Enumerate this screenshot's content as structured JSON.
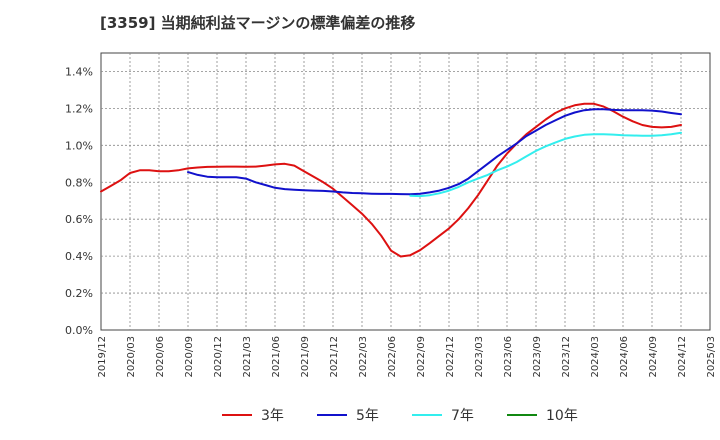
{
  "title": "[3359]  当期純利益マージンの標準偏差の推移",
  "chart_data": {
    "type": "line",
    "title": "[3359]  当期純利益マージンの標準偏差の推移",
    "xlabel": "",
    "ylabel": "",
    "x_ticks": [
      "2019/12",
      "2020/03",
      "2020/06",
      "2020/09",
      "2020/12",
      "2021/03",
      "2021/06",
      "2021/09",
      "2021/12",
      "2022/03",
      "2022/06",
      "2022/09",
      "2022/12",
      "2023/03",
      "2023/06",
      "2023/09",
      "2023/12",
      "2024/03",
      "2024/06",
      "2024/09",
      "2024/12",
      "2025/03"
    ],
    "y_ticks": [
      "0.0%",
      "0.2%",
      "0.4%",
      "0.6%",
      "0.8%",
      "1.0%",
      "1.2%",
      "1.4%"
    ],
    "ylim": [
      0,
      1.5
    ],
    "grid": true,
    "legend_position": "bottom",
    "series": [
      {
        "name": "3年",
        "color": "#dd1111",
        "points": [
          [
            "2019/12",
            0.75
          ],
          [
            "2020/01",
            0.78
          ],
          [
            "2020/02",
            0.81
          ],
          [
            "2020/03",
            0.85
          ],
          [
            "2020/04",
            0.865
          ],
          [
            "2020/05",
            0.865
          ],
          [
            "2020/06",
            0.86
          ],
          [
            "2020/07",
            0.86
          ],
          [
            "2020/08",
            0.865
          ],
          [
            "2020/09",
            0.875
          ],
          [
            "2020/10",
            0.88
          ],
          [
            "2020/11",
            0.883
          ],
          [
            "2020/12",
            0.884
          ],
          [
            "2021/01",
            0.885
          ],
          [
            "2021/02",
            0.885
          ],
          [
            "2021/03",
            0.884
          ],
          [
            "2021/04",
            0.885
          ],
          [
            "2021/05",
            0.89
          ],
          [
            "2021/06",
            0.897
          ],
          [
            "2021/07",
            0.9
          ],
          [
            "2021/08",
            0.89
          ],
          [
            "2021/09",
            0.86
          ],
          [
            "2021/10",
            0.83
          ],
          [
            "2021/11",
            0.8
          ],
          [
            "2021/12",
            0.765
          ],
          [
            "2022/01",
            0.72
          ],
          [
            "2022/02",
            0.675
          ],
          [
            "2022/03",
            0.63
          ],
          [
            "2022/04",
            0.575
          ],
          [
            "2022/05",
            0.51
          ],
          [
            "2022/06",
            0.43
          ],
          [
            "2022/07",
            0.398
          ],
          [
            "2022/08",
            0.405
          ],
          [
            "2022/09",
            0.432
          ],
          [
            "2022/10",
            0.47
          ],
          [
            "2022/11",
            0.51
          ],
          [
            "2022/12",
            0.55
          ],
          [
            "2023/01",
            0.6
          ],
          [
            "2023/02",
            0.66
          ],
          [
            "2023/03",
            0.73
          ],
          [
            "2023/04",
            0.81
          ],
          [
            "2023/05",
            0.89
          ],
          [
            "2023/06",
            0.955
          ],
          [
            "2023/07",
            1.01
          ],
          [
            "2023/08",
            1.06
          ],
          [
            "2023/09",
            1.1
          ],
          [
            "2023/10",
            1.14
          ],
          [
            "2023/11",
            1.175
          ],
          [
            "2023/12",
            1.2
          ],
          [
            "2024/01",
            1.217
          ],
          [
            "2024/02",
            1.225
          ],
          [
            "2024/03",
            1.225
          ],
          [
            "2024/04",
            1.21
          ],
          [
            "2024/05",
            1.185
          ],
          [
            "2024/06",
            1.155
          ],
          [
            "2024/07",
            1.13
          ],
          [
            "2024/08",
            1.11
          ],
          [
            "2024/09",
            1.1
          ],
          [
            "2024/10",
            1.097
          ],
          [
            "2024/11",
            1.1
          ],
          [
            "2024/12",
            1.11
          ]
        ]
      },
      {
        "name": "5年",
        "color": "#1111cc",
        "points": [
          [
            "2020/09",
            0.855
          ],
          [
            "2020/10",
            0.84
          ],
          [
            "2020/11",
            0.83
          ],
          [
            "2020/12",
            0.827
          ],
          [
            "2021/01",
            0.827
          ],
          [
            "2021/02",
            0.827
          ],
          [
            "2021/03",
            0.82
          ],
          [
            "2021/04",
            0.8
          ],
          [
            "2021/05",
            0.785
          ],
          [
            "2021/06",
            0.77
          ],
          [
            "2021/07",
            0.763
          ],
          [
            "2021/08",
            0.76
          ],
          [
            "2021/09",
            0.757
          ],
          [
            "2021/10",
            0.755
          ],
          [
            "2021/11",
            0.753
          ],
          [
            "2021/12",
            0.75
          ],
          [
            "2022/01",
            0.745
          ],
          [
            "2022/02",
            0.742
          ],
          [
            "2022/03",
            0.74
          ],
          [
            "2022/04",
            0.738
          ],
          [
            "2022/05",
            0.737
          ],
          [
            "2022/06",
            0.737
          ],
          [
            "2022/07",
            0.736
          ],
          [
            "2022/08",
            0.735
          ],
          [
            "2022/09",
            0.738
          ],
          [
            "2022/10",
            0.745
          ],
          [
            "2022/11",
            0.755
          ],
          [
            "2022/12",
            0.77
          ],
          [
            "2023/01",
            0.79
          ],
          [
            "2023/02",
            0.82
          ],
          [
            "2023/03",
            0.86
          ],
          [
            "2023/04",
            0.9
          ],
          [
            "2023/05",
            0.94
          ],
          [
            "2023/06",
            0.975
          ],
          [
            "2023/07",
            1.01
          ],
          [
            "2023/08",
            1.05
          ],
          [
            "2023/09",
            1.08
          ],
          [
            "2023/10",
            1.11
          ],
          [
            "2023/11",
            1.135
          ],
          [
            "2023/12",
            1.16
          ],
          [
            "2024/01",
            1.178
          ],
          [
            "2024/02",
            1.19
          ],
          [
            "2024/03",
            1.195
          ],
          [
            "2024/04",
            1.195
          ],
          [
            "2024/05",
            1.192
          ],
          [
            "2024/06",
            1.19
          ],
          [
            "2024/07",
            1.19
          ],
          [
            "2024/08",
            1.19
          ],
          [
            "2024/09",
            1.188
          ],
          [
            "2024/10",
            1.183
          ],
          [
            "2024/11",
            1.175
          ],
          [
            "2024/12",
            1.168
          ]
        ]
      },
      {
        "name": "7年",
        "color": "#33eeee",
        "points": [
          [
            "2022/08",
            0.727
          ],
          [
            "2022/09",
            0.725
          ],
          [
            "2022/10",
            0.73
          ],
          [
            "2022/11",
            0.74
          ],
          [
            "2022/12",
            0.755
          ],
          [
            "2023/01",
            0.775
          ],
          [
            "2023/02",
            0.8
          ],
          [
            "2023/03",
            0.82
          ],
          [
            "2023/04",
            0.84
          ],
          [
            "2023/05",
            0.865
          ],
          [
            "2023/06",
            0.885
          ],
          [
            "2023/07",
            0.91
          ],
          [
            "2023/08",
            0.94
          ],
          [
            "2023/09",
            0.97
          ],
          [
            "2023/10",
            0.995
          ],
          [
            "2023/11",
            1.015
          ],
          [
            "2023/12",
            1.035
          ],
          [
            "2024/01",
            1.048
          ],
          [
            "2024/02",
            1.057
          ],
          [
            "2024/03",
            1.06
          ],
          [
            "2024/04",
            1.06
          ],
          [
            "2024/05",
            1.058
          ],
          [
            "2024/06",
            1.055
          ],
          [
            "2024/07",
            1.053
          ],
          [
            "2024/08",
            1.052
          ],
          [
            "2024/09",
            1.052
          ],
          [
            "2024/10",
            1.055
          ],
          [
            "2024/11",
            1.06
          ],
          [
            "2024/12",
            1.068
          ]
        ]
      },
      {
        "name": "10年",
        "color": "#118811",
        "points": []
      }
    ]
  }
}
